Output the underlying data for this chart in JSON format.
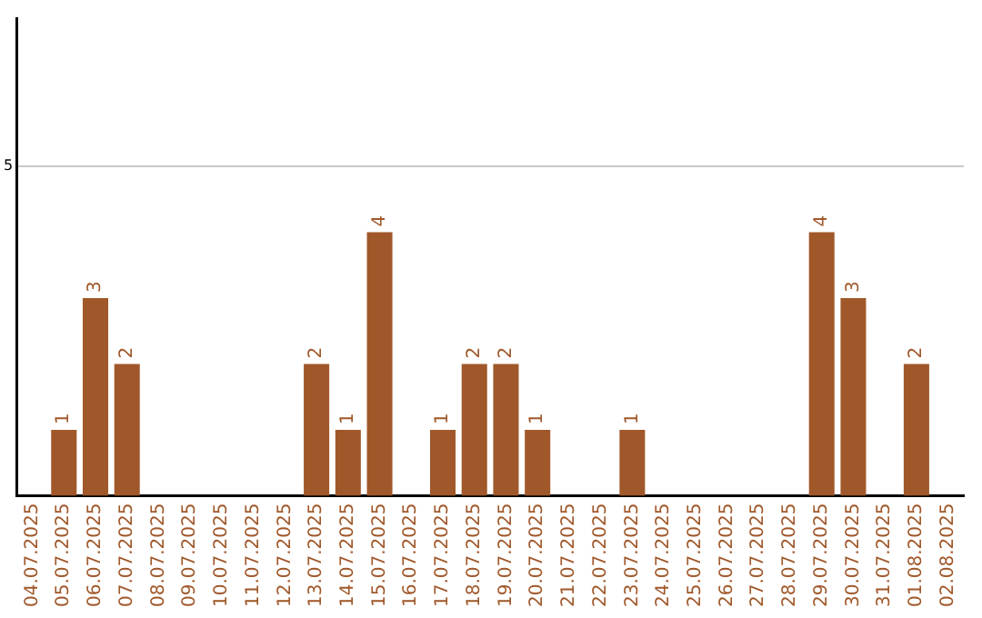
{
  "chart_data": {
    "type": "bar",
    "categories": [
      "04.07.2025",
      "05.07.2025",
      "06.07.2025",
      "07.07.2025",
      "08.07.2025",
      "09.07.2025",
      "10.07.2025",
      "11.07.2025",
      "12.07.2025",
      "13.07.2025",
      "14.07.2025",
      "15.07.2025",
      "16.07.2025",
      "17.07.2025",
      "18.07.2025",
      "19.07.2025",
      "20.07.2025",
      "21.07.2025",
      "22.07.2025",
      "23.07.2025",
      "24.07.2025",
      "25.07.2025",
      "26.07.2025",
      "27.07.2025",
      "28.07.2025",
      "29.07.2025",
      "30.07.2025",
      "31.07.2025",
      "01.08.2025",
      "02.08.2025"
    ],
    "values": [
      0,
      1,
      3,
      2,
      0,
      0,
      0,
      0,
      0,
      2,
      1,
      4,
      0,
      1,
      2,
      2,
      1,
      0,
      0,
      1,
      0,
      0,
      0,
      0,
      0,
      4,
      3,
      0,
      2,
      0
    ],
    "value_labels": [
      null,
      "1",
      "3",
      "2",
      null,
      null,
      null,
      null,
      null,
      "2",
      "1",
      "4",
      null,
      "1",
      "2",
      "2",
      "1",
      null,
      null,
      "1",
      null,
      null,
      null,
      null,
      null,
      "4",
      "3",
      null,
      "2",
      null
    ],
    "color": "#a0582a",
    "ylim": [
      0,
      7.25
    ],
    "yticks": [
      5
    ],
    "grid": "y",
    "legend": false
  }
}
